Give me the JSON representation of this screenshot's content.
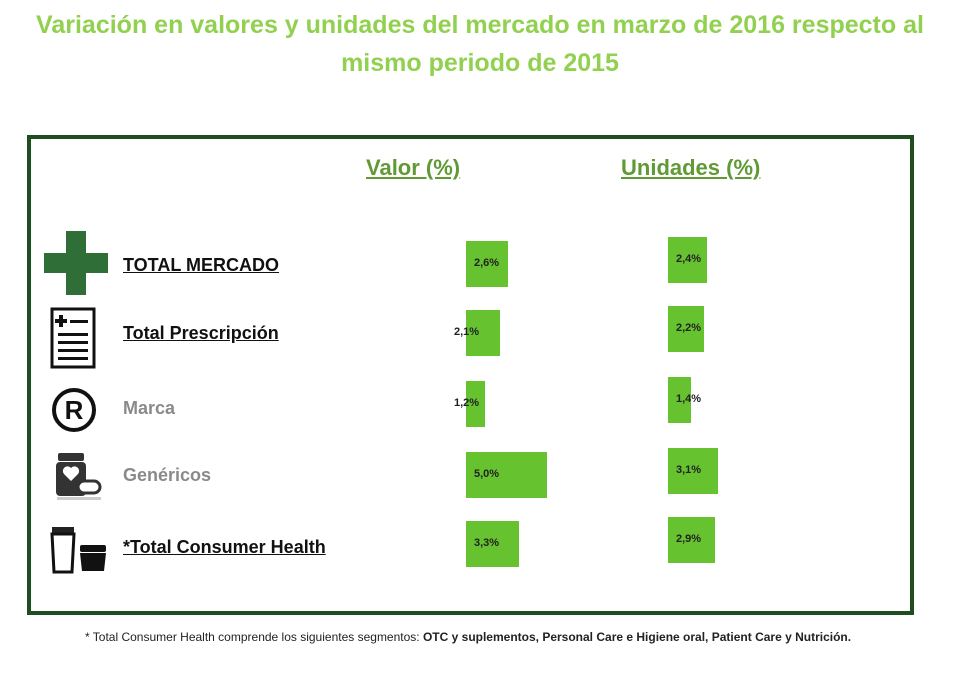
{
  "title": {
    "line1": "Variación en valores y unidades del mercado en marzo de 2016 respecto al",
    "line2": "mismo periodo de 2015"
  },
  "columns": {
    "valor": "Valor (%)",
    "unidades": "Unidades (%)"
  },
  "footnote": {
    "prefix": "* Total Consumer Health comprende los siguientes segmentos: ",
    "segments": "OTC y suplementos, Personal Care e Higiene oral, Patient Care y Nutrición."
  },
  "colors": {
    "title": "#92D050",
    "bar": "#66C22E",
    "frame": "#1E4D20"
  },
  "chart_data": {
    "type": "bar",
    "categories": [
      "TOTAL MERCADO",
      "Total Prescripción",
      "Marca",
      "Genéricos",
      "*Total Consumer Health"
    ],
    "series": [
      {
        "name": "Valor (%)",
        "values": [
          2.6,
          2.1,
          1.2,
          5.0,
          3.3
        ],
        "labels": [
          "2,6%",
          "2,1%",
          "1,2%",
          "5,0%",
          "3,3%"
        ]
      },
      {
        "name": "Unidades (%)",
        "values": [
          2.4,
          2.2,
          1.4,
          3.1,
          2.9
        ],
        "labels": [
          "2,4%",
          "2,2%",
          "1,4%",
          "3,1%",
          "2,9%"
        ]
      }
    ],
    "icons": [
      "plus-cross-icon",
      "prescription-icon",
      "registered-icon",
      "medicine-bottle-icon",
      "cosmetic-jars-icon"
    ]
  }
}
